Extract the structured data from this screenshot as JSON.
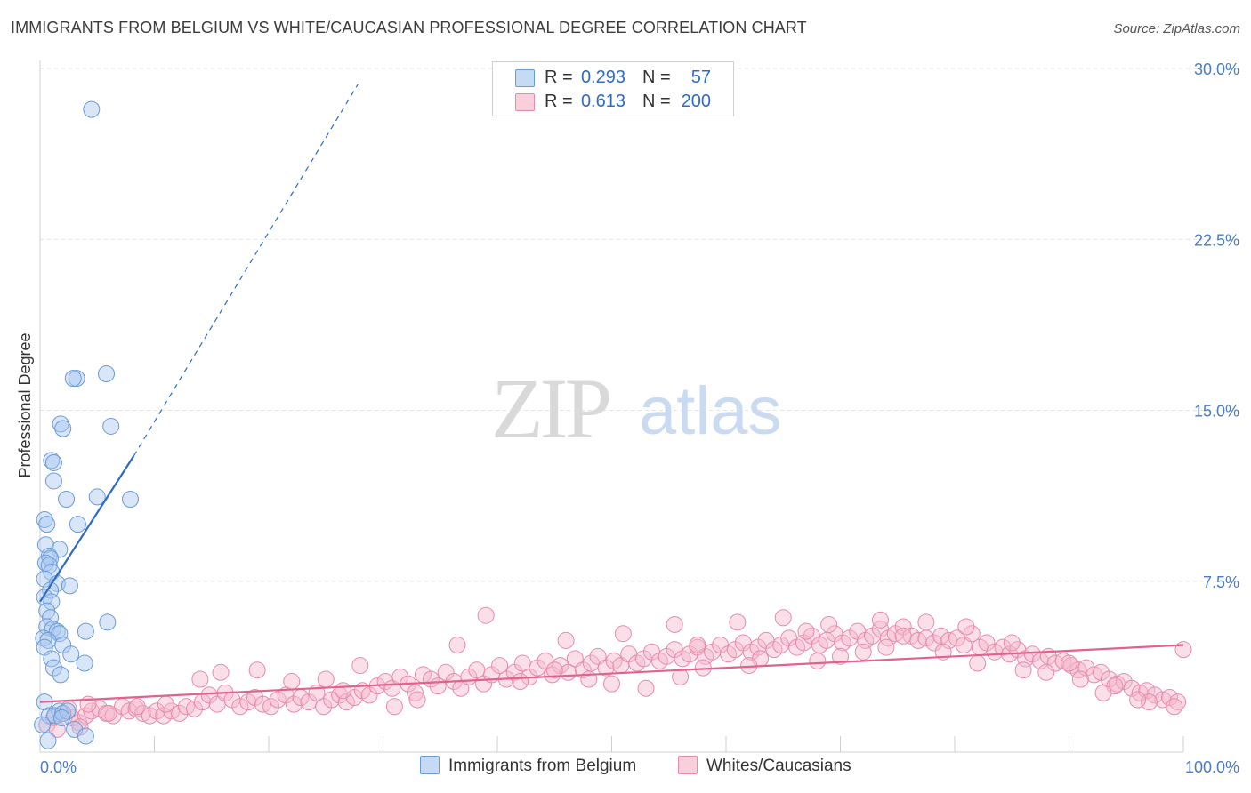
{
  "header": {
    "title": "IMMIGRANTS FROM BELGIUM VS WHITE/CAUCASIAN PROFESSIONAL DEGREE CORRELATION CHART",
    "source": "Source: ZipAtlas.com"
  },
  "watermark": {
    "zip": "ZIP",
    "atlas": "atlas"
  },
  "legend": {
    "rows": [
      {
        "r_label": "R =",
        "r_value": "0.293",
        "n_label": "N =",
        "n_value": "57"
      },
      {
        "r_label": "R =",
        "r_value": "0.613",
        "n_label": "N =",
        "n_value": "200"
      }
    ]
  },
  "colors": {
    "blue_fill": "#a9c8f0",
    "blue_stroke": "#6a9bd8",
    "blue_line": "#2e6bc4",
    "pink_fill": "#f5b8cb",
    "pink_stroke": "#e88aa8",
    "pink_line": "#e0628e",
    "grid": "#e3e3e3",
    "tick_text": "#4a7cc7"
  },
  "chart_data": {
    "type": "scatter",
    "title": "IMMIGRANTS FROM BELGIUM VS WHITE/CAUCASIAN PROFESSIONAL DEGREE CORRELATION CHART",
    "xlabel": "",
    "ylabel": "Professional Degree",
    "xlim": [
      0,
      100
    ],
    "ylim": [
      0,
      30
    ],
    "x_tick_labels": [
      "0.0%",
      "100.0%"
    ],
    "y_ticks": [
      7.5,
      15.0,
      22.5,
      30.0
    ],
    "y_tick_labels": [
      "7.5%",
      "15.0%",
      "22.5%",
      "30.0%"
    ],
    "grid": true,
    "series": [
      {
        "name": "Immigrants from Belgium",
        "color": "#a9c8f0",
        "r": 0.293,
        "n": 57,
        "trend": {
          "x": [
            0,
            8.2
          ],
          "y": [
            6.6,
            13.0
          ],
          "dashed_to": {
            "x": 27.8,
            "y": 29.3
          }
        },
        "points": [
          [
            4.5,
            28.2
          ],
          [
            3.2,
            16.4
          ],
          [
            2.9,
            16.4
          ],
          [
            5.8,
            16.6
          ],
          [
            1.8,
            14.4
          ],
          [
            2.0,
            14.2
          ],
          [
            6.2,
            14.3
          ],
          [
            1.0,
            12.8
          ],
          [
            1.2,
            12.7
          ],
          [
            1.2,
            11.9
          ],
          [
            2.3,
            11.1
          ],
          [
            7.9,
            11.1
          ],
          [
            5.0,
            11.2
          ],
          [
            0.4,
            10.2
          ],
          [
            0.6,
            10.0
          ],
          [
            3.3,
            10.0
          ],
          [
            0.5,
            9.1
          ],
          [
            1.7,
            8.9
          ],
          [
            0.8,
            8.6
          ],
          [
            0.9,
            8.5
          ],
          [
            0.5,
            8.3
          ],
          [
            0.8,
            8.2
          ],
          [
            1.0,
            7.9
          ],
          [
            0.4,
            7.6
          ],
          [
            1.5,
            7.4
          ],
          [
            2.6,
            7.3
          ],
          [
            0.9,
            7.1
          ],
          [
            0.4,
            6.8
          ],
          [
            1.0,
            6.6
          ],
          [
            0.6,
            6.2
          ],
          [
            0.9,
            5.9
          ],
          [
            5.9,
            5.7
          ],
          [
            0.6,
            5.5
          ],
          [
            1.1,
            5.4
          ],
          [
            1.5,
            5.3
          ],
          [
            1.7,
            5.2
          ],
          [
            4.0,
            5.3
          ],
          [
            0.3,
            5.0
          ],
          [
            0.7,
            4.9
          ],
          [
            2.0,
            4.7
          ],
          [
            0.4,
            4.6
          ],
          [
            2.7,
            4.3
          ],
          [
            1.0,
            4.1
          ],
          [
            3.9,
            3.9
          ],
          [
            1.2,
            3.7
          ],
          [
            1.8,
            3.4
          ],
          [
            0.4,
            2.2
          ],
          [
            0.8,
            1.6
          ],
          [
            1.7,
            1.8
          ],
          [
            1.3,
            1.6
          ],
          [
            2.0,
            1.7
          ],
          [
            2.4,
            1.8
          ],
          [
            1.9,
            1.5
          ],
          [
            3.0,
            1.0
          ],
          [
            4.0,
            0.7
          ],
          [
            0.7,
            0.5
          ],
          [
            0.2,
            1.2
          ]
        ]
      },
      {
        "name": "Whites/Caucasians",
        "color": "#f5b8cb",
        "r": 0.613,
        "n": 200,
        "trend": {
          "x": [
            0,
            100
          ],
          "y": [
            2.2,
            4.7
          ]
        },
        "points": [
          [
            0.6,
            1.2
          ],
          [
            1.2,
            1.5
          ],
          [
            2.0,
            1.7
          ],
          [
            2.8,
            1.5
          ],
          [
            3.4,
            1.3
          ],
          [
            4.0,
            1.6
          ],
          [
            4.5,
            1.8
          ],
          [
            5.2,
            1.9
          ],
          [
            5.8,
            1.7
          ],
          [
            6.4,
            1.6
          ],
          [
            7.2,
            2.0
          ],
          [
            7.8,
            1.8
          ],
          [
            8.4,
            1.9
          ],
          [
            9.0,
            1.7
          ],
          [
            9.6,
            1.6
          ],
          [
            10.2,
            1.8
          ],
          [
            10.8,
            1.6
          ],
          [
            11.5,
            1.8
          ],
          [
            12.2,
            1.7
          ],
          [
            12.8,
            2.0
          ],
          [
            13.5,
            1.9
          ],
          [
            14.2,
            2.2
          ],
          [
            14.8,
            2.5
          ],
          [
            15.5,
            2.1
          ],
          [
            16.2,
            2.6
          ],
          [
            16.8,
            2.3
          ],
          [
            17.5,
            2.0
          ],
          [
            18.2,
            2.2
          ],
          [
            18.8,
            2.4
          ],
          [
            19.5,
            2.1
          ],
          [
            20.2,
            2.0
          ],
          [
            20.8,
            2.3
          ],
          [
            21.5,
            2.5
          ],
          [
            22.2,
            2.1
          ],
          [
            22.8,
            2.4
          ],
          [
            23.5,
            2.2
          ],
          [
            24.2,
            2.6
          ],
          [
            24.8,
            2.0
          ],
          [
            25.5,
            2.3
          ],
          [
            26.2,
            2.5
          ],
          [
            26.8,
            2.2
          ],
          [
            27.5,
            2.4
          ],
          [
            28.2,
            2.7
          ],
          [
            28.8,
            2.5
          ],
          [
            29.5,
            2.9
          ],
          [
            30.2,
            3.1
          ],
          [
            30.8,
            2.8
          ],
          [
            31.5,
            3.3
          ],
          [
            32.2,
            3.0
          ],
          [
            32.8,
            2.6
          ],
          [
            33.5,
            3.4
          ],
          [
            34.2,
            3.2
          ],
          [
            34.8,
            2.9
          ],
          [
            35.5,
            3.5
          ],
          [
            36.2,
            3.1
          ],
          [
            36.8,
            2.8
          ],
          [
            37.5,
            3.3
          ],
          [
            38.2,
            3.6
          ],
          [
            38.8,
            3.0
          ],
          [
            39.5,
            3.4
          ],
          [
            40.2,
            3.8
          ],
          [
            40.8,
            3.2
          ],
          [
            41.5,
            3.5
          ],
          [
            42.2,
            3.9
          ],
          [
            42.8,
            3.3
          ],
          [
            43.5,
            3.7
          ],
          [
            44.2,
            4.0
          ],
          [
            44.8,
            3.4
          ],
          [
            45.5,
            3.8
          ],
          [
            46.2,
            3.5
          ],
          [
            46.8,
            4.1
          ],
          [
            47.5,
            3.6
          ],
          [
            48.2,
            3.9
          ],
          [
            48.8,
            4.2
          ],
          [
            49.5,
            3.7
          ],
          [
            50.2,
            4.0
          ],
          [
            50.8,
            3.8
          ],
          [
            51.5,
            4.3
          ],
          [
            52.2,
            3.9
          ],
          [
            52.8,
            4.1
          ],
          [
            53.5,
            4.4
          ],
          [
            54.2,
            4.0
          ],
          [
            54.8,
            4.2
          ],
          [
            55.5,
            4.5
          ],
          [
            56.2,
            4.1
          ],
          [
            56.8,
            4.3
          ],
          [
            57.5,
            4.6
          ],
          [
            58.2,
            4.2
          ],
          [
            58.8,
            4.4
          ],
          [
            59.5,
            4.7
          ],
          [
            60.2,
            4.3
          ],
          [
            60.8,
            4.5
          ],
          [
            61.5,
            4.8
          ],
          [
            62.2,
            4.4
          ],
          [
            62.8,
            4.6
          ],
          [
            63.5,
            4.9
          ],
          [
            64.2,
            4.5
          ],
          [
            64.8,
            4.7
          ],
          [
            65.5,
            5.0
          ],
          [
            66.2,
            4.6
          ],
          [
            66.8,
            4.8
          ],
          [
            67.5,
            5.1
          ],
          [
            68.2,
            4.7
          ],
          [
            68.8,
            4.9
          ],
          [
            69.5,
            5.2
          ],
          [
            70.2,
            4.8
          ],
          [
            70.8,
            5.0
          ],
          [
            71.5,
            5.3
          ],
          [
            72.2,
            4.9
          ],
          [
            72.8,
            5.1
          ],
          [
            73.5,
            5.4
          ],
          [
            74.2,
            5.0
          ],
          [
            74.8,
            5.2
          ],
          [
            75.5,
            5.5
          ],
          [
            76.2,
            5.1
          ],
          [
            76.8,
            4.9
          ],
          [
            77.5,
            5.0
          ],
          [
            78.2,
            4.8
          ],
          [
            78.8,
            5.1
          ],
          [
            79.5,
            4.9
          ],
          [
            80.2,
            5.0
          ],
          [
            80.8,
            4.7
          ],
          [
            81.5,
            5.2
          ],
          [
            82.2,
            4.6
          ],
          [
            82.8,
            4.8
          ],
          [
            83.5,
            4.4
          ],
          [
            84.2,
            4.6
          ],
          [
            84.8,
            4.3
          ],
          [
            85.5,
            4.5
          ],
          [
            86.2,
            4.1
          ],
          [
            86.8,
            4.3
          ],
          [
            87.5,
            4.0
          ],
          [
            88.2,
            4.2
          ],
          [
            88.8,
            3.9
          ],
          [
            89.5,
            4.0
          ],
          [
            90.2,
            3.8
          ],
          [
            90.8,
            3.6
          ],
          [
            91.5,
            3.7
          ],
          [
            92.2,
            3.4
          ],
          [
            92.8,
            3.5
          ],
          [
            93.5,
            3.2
          ],
          [
            94.2,
            3.0
          ],
          [
            94.8,
            3.1
          ],
          [
            95.5,
            2.8
          ],
          [
            96.2,
            2.6
          ],
          [
            96.8,
            2.7
          ],
          [
            97.5,
            2.5
          ],
          [
            98.2,
            2.3
          ],
          [
            98.8,
            2.4
          ],
          [
            99.5,
            2.2
          ],
          [
            100.0,
            4.5
          ],
          [
            39.0,
            6.0
          ],
          [
            55.5,
            5.6
          ],
          [
            61.0,
            5.7
          ],
          [
            65.0,
            5.9
          ],
          [
            69.0,
            5.6
          ],
          [
            73.5,
            5.8
          ],
          [
            77.5,
            5.7
          ],
          [
            81.0,
            5.5
          ],
          [
            51.0,
            5.2
          ],
          [
            46.0,
            4.9
          ],
          [
            57.5,
            4.7
          ],
          [
            67.0,
            5.3
          ],
          [
            75.5,
            5.1
          ],
          [
            79.0,
            4.4
          ],
          [
            85.0,
            4.8
          ],
          [
            88.0,
            3.5
          ],
          [
            91.0,
            3.2
          ],
          [
            94.0,
            2.9
          ],
          [
            97.0,
            2.2
          ],
          [
            99.2,
            2.0
          ],
          [
            36.5,
            4.7
          ],
          [
            33.0,
            2.3
          ],
          [
            28.0,
            3.8
          ],
          [
            25.0,
            3.2
          ],
          [
            22.0,
            3.1
          ],
          [
            19.0,
            3.6
          ],
          [
            15.8,
            3.5
          ],
          [
            14.0,
            3.2
          ],
          [
            11.0,
            2.1
          ],
          [
            8.5,
            2.0
          ],
          [
            6.0,
            1.7
          ],
          [
            4.2,
            2.1
          ],
          [
            2.5,
            1.9
          ],
          [
            1.5,
            1.0
          ],
          [
            3.5,
            1.1
          ],
          [
            42.0,
            3.1
          ],
          [
            48.0,
            3.2
          ],
          [
            53.0,
            2.8
          ],
          [
            58.0,
            3.7
          ],
          [
            63.0,
            4.1
          ],
          [
            70.0,
            4.2
          ],
          [
            74.0,
            4.6
          ],
          [
            82.0,
            3.9
          ],
          [
            86.0,
            3.6
          ],
          [
            90.0,
            3.9
          ],
          [
            93.0,
            2.6
          ],
          [
            96.0,
            2.3
          ],
          [
            31.0,
            2.0
          ],
          [
            26.5,
            2.7
          ],
          [
            45.0,
            3.6
          ],
          [
            50.0,
            3.0
          ],
          [
            56.0,
            3.3
          ],
          [
            62.0,
            3.8
          ],
          [
            68.0,
            4.0
          ],
          [
            72.0,
            4.4
          ]
        ]
      }
    ]
  },
  "bottom_legend": {
    "items": [
      {
        "label": "Immigrants from Belgium"
      },
      {
        "label": "Whites/Caucasians"
      }
    ]
  }
}
